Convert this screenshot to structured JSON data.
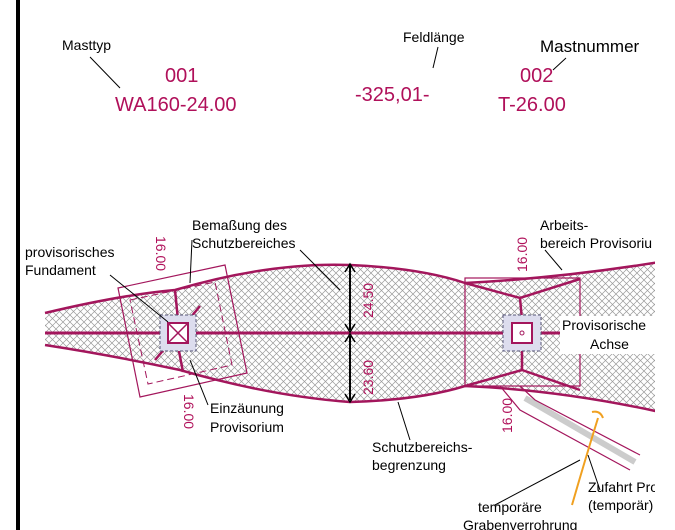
{
  "header": {
    "mast_type_label": "Masttyp",
    "mast1_number": "001",
    "mast1_type": "WA160-24.00",
    "span_label": "Feldlänge",
    "span_value": "-325,01-",
    "mast_number_label": "Mastnummer",
    "mast2_number": "002",
    "mast2_type": "T-26.00"
  },
  "labels": {
    "dimensioning": [
      "Bemaßung des",
      "Schutzbereiches"
    ],
    "foundation": [
      "provisorisches",
      "Fundament"
    ],
    "work_area": [
      "Arbeits-",
      "bereich Provisoriu"
    ],
    "axis": [
      "Provisorische",
      "Achse"
    ],
    "fence": [
      "Einzäunung",
      "Provisorium"
    ],
    "boundary": [
      "Schutzbereichs-",
      "begrenzung"
    ],
    "access": [
      "Zufahrt Prov",
      "(temporär)"
    ],
    "pipe": [
      "temporäre",
      "Grabenverrohrung"
    ]
  },
  "dimensions": {
    "mast1_top": "16.00",
    "mast1_bottom": "16.00",
    "upper_width": "24.50",
    "lower_width": "23.60",
    "mast2_top": "16.00",
    "mast2_bottom": "16.00"
  }
}
